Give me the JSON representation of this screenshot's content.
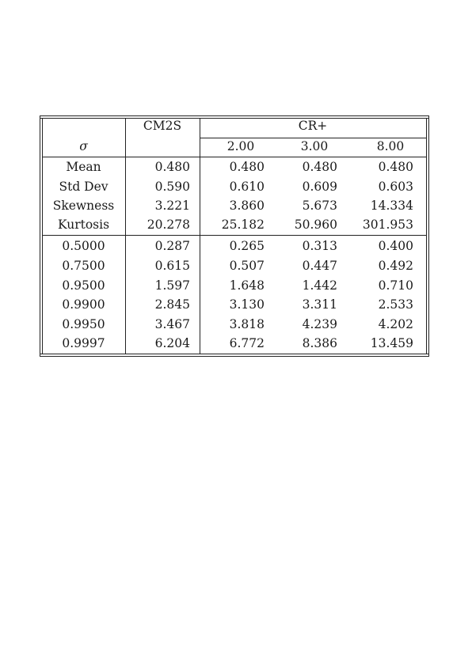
{
  "table": {
    "header": {
      "sigma": "σ",
      "col1": "CM2S",
      "group": "CR+",
      "subcols": [
        "2.00",
        "3.00",
        "8.00"
      ]
    },
    "stats_rows": [
      {
        "label": "Mean",
        "values": [
          "0.480",
          "0.480",
          "0.480",
          "0.480"
        ]
      },
      {
        "label": "Std Dev",
        "values": [
          "0.590",
          "0.610",
          "0.609",
          "0.603"
        ]
      },
      {
        "label": "Skewness",
        "values": [
          "3.221",
          "3.860",
          "5.673",
          "14.334"
        ]
      },
      {
        "label": "Kurtosis",
        "values": [
          "20.278",
          "25.182",
          "50.960",
          "301.953"
        ]
      }
    ],
    "quantile_rows": [
      {
        "label": "0.5000",
        "values": [
          "0.287",
          "0.265",
          "0.313",
          "0.400"
        ]
      },
      {
        "label": "0.7500",
        "values": [
          "0.615",
          "0.507",
          "0.447",
          "0.492"
        ]
      },
      {
        "label": "0.9500",
        "values": [
          "1.597",
          "1.648",
          "1.442",
          "0.710"
        ]
      },
      {
        "label": "0.9900",
        "values": [
          "2.845",
          "3.130",
          "3.311",
          "2.533"
        ]
      },
      {
        "label": "0.9950",
        "values": [
          "3.467",
          "3.818",
          "4.239",
          "4.202"
        ]
      },
      {
        "label": "0.9997",
        "values": [
          "6.204",
          "6.772",
          "8.386",
          "13.459"
        ]
      }
    ]
  }
}
